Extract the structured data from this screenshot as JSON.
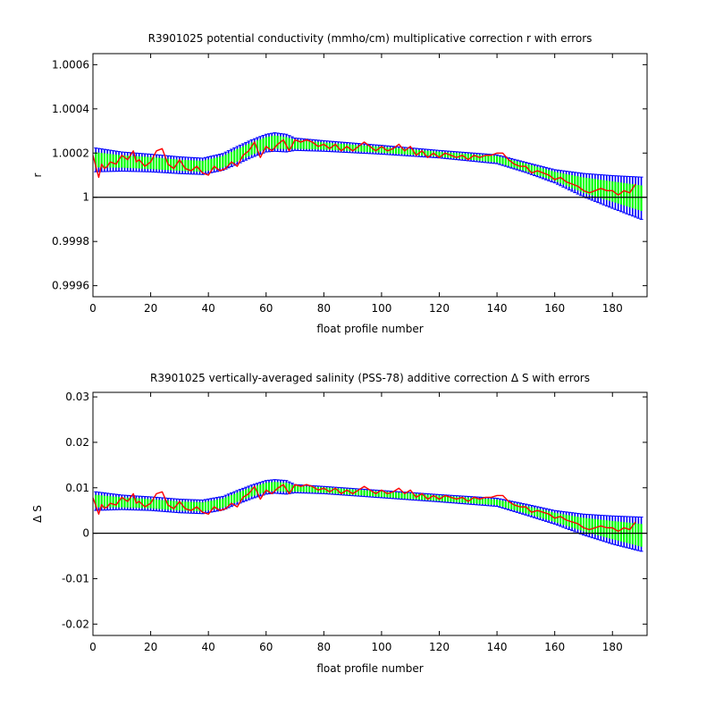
{
  "chart_data": [
    {
      "type": "line",
      "title": "R3901025 potential conductivity (mmho/cm) multiplicative correction r with errors",
      "xlabel": "float profile number",
      "ylabel": "r",
      "xlim": [
        0,
        192
      ],
      "ylim": [
        0.99955,
        1.00065
      ],
      "xticks": [
        0,
        20,
        40,
        60,
        80,
        100,
        120,
        140,
        160,
        180
      ],
      "xtick_labels": [
        "0",
        "20",
        "40",
        "60",
        "80",
        "100",
        "120",
        "140",
        "160",
        "180"
      ],
      "yticks": [
        0.9996,
        0.9998,
        1.0,
        1.0002,
        1.0004,
        1.0006
      ],
      "ytick_labels": [
        "0.9996",
        "0.9998",
        "1",
        "1.0002",
        "1.0004",
        "1.0006"
      ],
      "reference_line": 1.0,
      "grid": false,
      "colors": {
        "error_outer": "#0000ff",
        "error_inner": "#00ff00",
        "profile": "#ff0000",
        "reference": "#000000"
      },
      "fit": {
        "x": [
          0,
          10,
          20,
          30,
          38,
          45,
          50,
          55,
          60,
          63,
          67,
          70,
          80,
          100,
          120,
          140,
          150,
          160,
          170,
          180,
          192
        ],
        "center": [
          1.00017,
          1.000162,
          1.000155,
          1.000145,
          1.00014,
          1.00016,
          1.00019,
          1.00022,
          1.000245,
          1.00025,
          1.000245,
          1.00024,
          1.000232,
          1.000215,
          1.000195,
          1.000172,
          1.000135,
          1.000095,
          1.000055,
          1.000025,
          0.99999
        ],
        "upper_err": [
          1.000225,
          1.000205,
          1.000195,
          1.000183,
          1.000177,
          1.000198,
          1.00023,
          1.00026,
          1.000285,
          1.000292,
          1.000285,
          1.000268,
          1.000256,
          1.000235,
          1.000212,
          1.000192,
          1.000158,
          1.000125,
          1.000108,
          1.000098,
          1.00009
        ],
        "lower_err": [
          1.000115,
          1.000118,
          1.000115,
          1.000107,
          1.000103,
          1.000122,
          1.00015,
          1.00018,
          1.000205,
          1.000208,
          1.000205,
          1.000212,
          1.000208,
          1.000195,
          1.000178,
          1.000152,
          1.000112,
          1.000065,
          1.000002,
          0.99995,
          0.99989
        ],
        "upper_fill": [
          1.000205,
          1.00019,
          1.000182,
          1.00017,
          1.000165,
          1.000186,
          1.000218,
          1.000248,
          1.000272,
          1.00028,
          1.000272,
          1.00026,
          1.000248,
          1.000228,
          1.000206,
          1.000186,
          1.000152,
          1.000115,
          1.00009,
          1.000072,
          1.00005
        ],
        "lower_fill": [
          1.000135,
          1.000134,
          1.000128,
          1.00012,
          1.000115,
          1.000134,
          1.000162,
          1.000192,
          1.000218,
          1.00022,
          1.000218,
          1.00022,
          1.000216,
          1.000202,
          1.000184,
          1.000158,
          1.000118,
          1.000075,
          1.00002,
          0.99998,
          0.99993
        ]
      },
      "profile": {
        "x": [
          0,
          1,
          2,
          3,
          4,
          5,
          6,
          8,
          10,
          12,
          14,
          15,
          16,
          18,
          20,
          22,
          24,
          26,
          28,
          30,
          32,
          34,
          36,
          38,
          40,
          42,
          44,
          46,
          48,
          50,
          52,
          54,
          56,
          58,
          60,
          62,
          64,
          66,
          68,
          70,
          72,
          74,
          76,
          78,
          80,
          82,
          84,
          86,
          88,
          90,
          92,
          94,
          96,
          98,
          100,
          102,
          104,
          106,
          108,
          110,
          112,
          114,
          116,
          118,
          120,
          122,
          124,
          126,
          128,
          130,
          132,
          134,
          136,
          138,
          140,
          142,
          144,
          146,
          148,
          150,
          152,
          154,
          156,
          158,
          160,
          162,
          164,
          166,
          168,
          170,
          172,
          174,
          176,
          178,
          180,
          182,
          184,
          186,
          188
        ],
        "y": [
          1.00019,
          1.00014,
          1.00009,
          1.00015,
          1.00013,
          1.00014,
          1.00016,
          1.00015,
          1.00019,
          1.00017,
          1.00021,
          1.00016,
          1.00017,
          1.00014,
          1.00016,
          1.00021,
          1.00022,
          1.00015,
          1.00013,
          1.00017,
          1.00013,
          1.00012,
          1.00014,
          1.00011,
          1.0001,
          1.00014,
          1.00012,
          1.00013,
          1.00016,
          1.00014,
          1.00019,
          1.00021,
          1.00025,
          1.00018,
          1.00023,
          1.00021,
          1.00024,
          1.00026,
          1.00021,
          1.00026,
          1.00025,
          1.00026,
          1.00025,
          1.00023,
          1.00024,
          1.00022,
          1.00024,
          1.00021,
          1.00023,
          1.00021,
          1.00023,
          1.00025,
          1.00023,
          1.00021,
          1.00023,
          1.00021,
          1.00022,
          1.00024,
          1.00021,
          1.00023,
          1.00019,
          1.00021,
          1.00018,
          1.0002,
          1.00018,
          1.0002,
          1.00019,
          1.00018,
          1.00019,
          1.00017,
          1.00019,
          1.00018,
          1.00019,
          1.00019,
          1.0002,
          1.0002,
          1.00017,
          1.00015,
          1.00014,
          1.00014,
          1.00011,
          1.00012,
          1.00011,
          1.0001,
          1.00008,
          1.00009,
          1.00007,
          1.00006,
          1.00005,
          1.00003,
          1.00002,
          1.00003,
          1.00004,
          1.00003,
          1.00003,
          1.00001,
          1.00003,
          1.00002,
          1.00006
        ]
      }
    },
    {
      "type": "line",
      "title": "R3901025 vertically-averaged salinity (PSS-78) additive correction Δ S with errors",
      "xlabel": "float profile number",
      "ylabel": "Δ S",
      "xlim": [
        0,
        192
      ],
      "ylim": [
        -0.0225,
        0.031
      ],
      "xticks": [
        0,
        20,
        40,
        60,
        80,
        100,
        120,
        140,
        160,
        180
      ],
      "xtick_labels": [
        "0",
        "20",
        "40",
        "60",
        "80",
        "100",
        "120",
        "140",
        "160",
        "180"
      ],
      "yticks": [
        -0.02,
        -0.01,
        0,
        0.01,
        0.02,
        0.03
      ],
      "ytick_labels": [
        "-0.02",
        "-0.01",
        "0",
        "0.01",
        "0.02",
        "0.03"
      ],
      "reference_line": 0,
      "grid": false,
      "colors": {
        "error_outer": "#0000ff",
        "error_inner": "#00ff00",
        "profile": "#ff0000",
        "reference": "#000000"
      },
      "fit": {
        "x": [
          0,
          10,
          20,
          30,
          38,
          45,
          50,
          55,
          60,
          63,
          67,
          70,
          80,
          100,
          120,
          140,
          150,
          160,
          170,
          180,
          192
        ],
        "center": [
          0.0071,
          0.0068,
          0.0065,
          0.006,
          0.0058,
          0.0066,
          0.0079,
          0.0091,
          0.0101,
          0.0103,
          0.0101,
          0.0098,
          0.0095,
          0.0086,
          0.0077,
          0.0068,
          0.0052,
          0.0035,
          0.0019,
          0.0007,
          -0.0007
        ],
        "upper_err": [
          0.0092,
          0.0084,
          0.008,
          0.0075,
          0.0073,
          0.0081,
          0.0094,
          0.0106,
          0.0116,
          0.0118,
          0.0116,
          0.0107,
          0.0103,
          0.0094,
          0.0085,
          0.0077,
          0.0064,
          0.005,
          0.0042,
          0.0038,
          0.0035
        ],
        "lower_err": [
          0.005,
          0.0052,
          0.005,
          0.0045,
          0.0043,
          0.0051,
          0.0064,
          0.0076,
          0.0086,
          0.0088,
          0.0086,
          0.0089,
          0.0087,
          0.0078,
          0.0069,
          0.0059,
          0.004,
          0.002,
          -0.0004,
          -0.0024,
          -0.0043
        ],
        "upper_fill": [
          0.0085,
          0.0079,
          0.0075,
          0.007,
          0.0068,
          0.0076,
          0.0089,
          0.0101,
          0.0111,
          0.0113,
          0.0111,
          0.0104,
          0.0101,
          0.0092,
          0.0083,
          0.0074,
          0.006,
          0.0045,
          0.0034,
          0.0027,
          0.0019
        ],
        "lower_fill": [
          0.0057,
          0.0057,
          0.0055,
          0.005,
          0.0048,
          0.0056,
          0.0069,
          0.0081,
          0.0091,
          0.0093,
          0.0091,
          0.0092,
          0.0089,
          0.008,
          0.0071,
          0.0062,
          0.0044,
          0.0025,
          0.0004,
          -0.0013,
          -0.0033
        ]
      },
      "profile": {
        "x": [
          0,
          1,
          2,
          3,
          4,
          5,
          6,
          8,
          10,
          12,
          14,
          15,
          16,
          18,
          20,
          22,
          24,
          26,
          28,
          30,
          32,
          34,
          36,
          38,
          40,
          42,
          44,
          46,
          48,
          50,
          52,
          54,
          56,
          58,
          60,
          62,
          64,
          66,
          68,
          70,
          72,
          74,
          76,
          78,
          80,
          82,
          84,
          86,
          88,
          90,
          92,
          94,
          96,
          98,
          100,
          102,
          104,
          106,
          108,
          110,
          112,
          114,
          116,
          118,
          120,
          122,
          124,
          126,
          128,
          130,
          132,
          134,
          136,
          138,
          140,
          142,
          144,
          146,
          148,
          150,
          152,
          154,
          156,
          158,
          160,
          162,
          164,
          166,
          168,
          170,
          172,
          174,
          176,
          178,
          180,
          182,
          184,
          186,
          188
        ],
        "y": [
          0.0078,
          0.0061,
          0.0042,
          0.0063,
          0.0055,
          0.0058,
          0.0066,
          0.0062,
          0.0079,
          0.007,
          0.0087,
          0.0066,
          0.007,
          0.0058,
          0.0066,
          0.0087,
          0.0091,
          0.0062,
          0.0054,
          0.007,
          0.0054,
          0.005,
          0.0058,
          0.0046,
          0.0042,
          0.0058,
          0.005,
          0.0054,
          0.0066,
          0.0058,
          0.0079,
          0.0087,
          0.0103,
          0.0075,
          0.0095,
          0.0087,
          0.0099,
          0.0107,
          0.0087,
          0.0107,
          0.0103,
          0.0107,
          0.0103,
          0.0095,
          0.0099,
          0.0091,
          0.0099,
          0.0087,
          0.0095,
          0.0087,
          0.0095,
          0.0103,
          0.0095,
          0.0087,
          0.0095,
          0.0087,
          0.0091,
          0.0099,
          0.0087,
          0.0095,
          0.0079,
          0.0087,
          0.0075,
          0.0083,
          0.0075,
          0.0083,
          0.0079,
          0.0075,
          0.0079,
          0.007,
          0.0079,
          0.0075,
          0.0079,
          0.0079,
          0.0083,
          0.0083,
          0.007,
          0.0062,
          0.0058,
          0.0058,
          0.0046,
          0.005,
          0.0046,
          0.0042,
          0.0033,
          0.0037,
          0.0029,
          0.0025,
          0.0021,
          0.0012,
          0.0008,
          0.0012,
          0.0016,
          0.0012,
          0.0012,
          0.0004,
          0.0012,
          0.0008,
          0.0025
        ]
      }
    }
  ]
}
